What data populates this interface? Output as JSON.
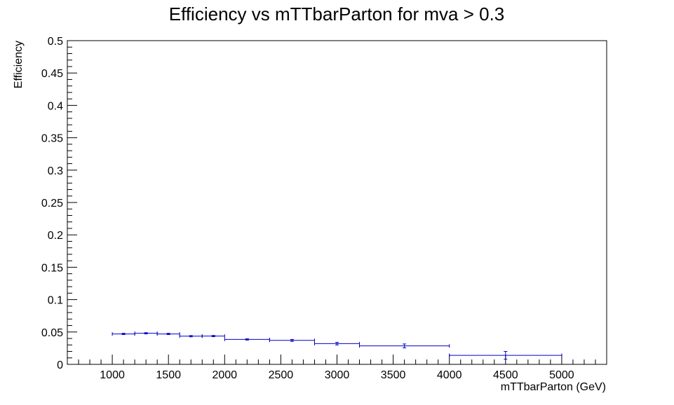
{
  "chart_data": {
    "type": "scatter",
    "title": "Efficiency vs mTTbarParton for mva > 0.3",
    "xlabel": "mTTbarParton (GeV)",
    "ylabel": "Efficiency",
    "xlim": [
      600,
      5400
    ],
    "ylim": [
      0,
      0.5
    ],
    "grid": false,
    "x_ticks": [
      1000,
      1500,
      2000,
      2500,
      3000,
      3500,
      4000,
      4500,
      5000
    ],
    "x_tick_labels": [
      "1000",
      "1500",
      "2000",
      "2500",
      "3000",
      "3500",
      "4000",
      "4500",
      "5000"
    ],
    "y_ticks": [
      0,
      0.05,
      0.1,
      0.15,
      0.2,
      0.25,
      0.3,
      0.35,
      0.4,
      0.45,
      0.5
    ],
    "y_tick_labels": [
      "0",
      "0.05",
      "0.1",
      "0.15",
      "0.2",
      "0.25",
      "0.3",
      "0.35",
      "0.4",
      "0.45",
      "0.5"
    ],
    "series": [
      {
        "color": "#0000cc",
        "points": [
          {
            "x": 1100,
            "xlow": 1000,
            "xhigh": 1200,
            "y": 0.047,
            "yerr": 0.001
          },
          {
            "x": 1300,
            "xlow": 1200,
            "xhigh": 1400,
            "y": 0.048,
            "yerr": 0.001
          },
          {
            "x": 1500,
            "xlow": 1400,
            "xhigh": 1600,
            "y": 0.047,
            "yerr": 0.001
          },
          {
            "x": 1700,
            "xlow": 1600,
            "xhigh": 1800,
            "y": 0.0435,
            "yerr": 0.001
          },
          {
            "x": 1900,
            "xlow": 1800,
            "xhigh": 2000,
            "y": 0.0437,
            "yerr": 0.001
          },
          {
            "x": 2200,
            "xlow": 2000,
            "xhigh": 2400,
            "y": 0.0385,
            "yerr": 0.001
          },
          {
            "x": 2600,
            "xlow": 2400,
            "xhigh": 2800,
            "y": 0.037,
            "yerr": 0.0015
          },
          {
            "x": 3000,
            "xlow": 2800,
            "xhigh": 3200,
            "y": 0.032,
            "yerr": 0.002
          },
          {
            "x": 3600,
            "xlow": 3200,
            "xhigh": 4000,
            "y": 0.0285,
            "yerr": 0.003
          },
          {
            "x": 4500,
            "xlow": 4000,
            "xhigh": 5000,
            "y": 0.014,
            "yerr": 0.006
          }
        ]
      }
    ]
  }
}
